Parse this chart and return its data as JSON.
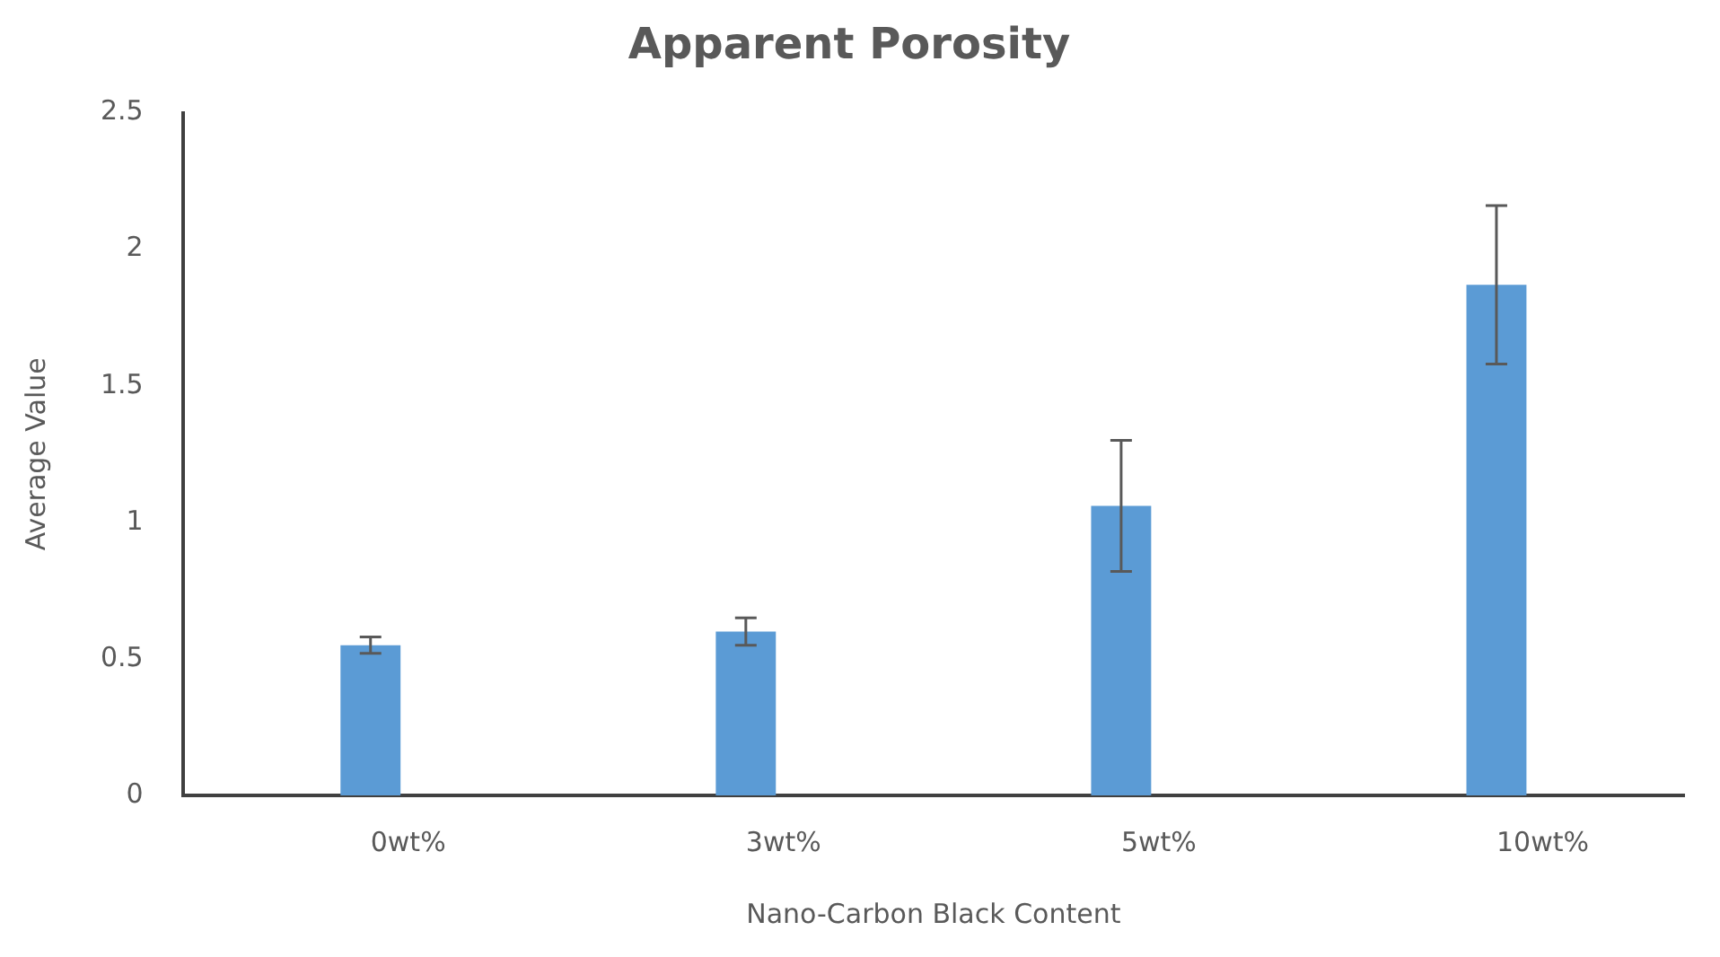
{
  "chart_data": {
    "type": "bar",
    "title": "Apparent Porosity",
    "xlabel": "Nano-Carbon Black Content",
    "ylabel": "Average Value",
    "categories": [
      "0wt%",
      "3wt%",
      "5wt%",
      "10wt%"
    ],
    "values": [
      0.55,
      0.6,
      1.06,
      1.87
    ],
    "errors": [
      0.03,
      0.05,
      0.24,
      0.29
    ],
    "color": "#5b9bd5",
    "ylim": [
      0,
      2.5
    ],
    "yticks": [
      0,
      0.5,
      1,
      1.5,
      2,
      2.5
    ],
    "grid": false,
    "legend": false
  }
}
